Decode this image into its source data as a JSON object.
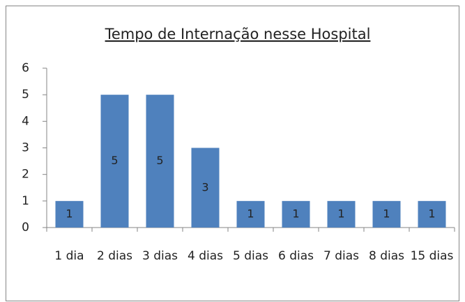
{
  "chart_data": {
    "type": "bar",
    "title": "Tempo de Internação nesse Hospital",
    "categories": [
      "1 dia",
      "2 dias",
      "3 dias",
      "4 dias",
      "5 dias",
      "6 dias",
      "7 dias",
      "8 dias",
      "15 dias"
    ],
    "values": [
      1,
      5,
      5,
      3,
      1,
      1,
      1,
      1,
      1
    ],
    "color": "#4f81bd",
    "ylim": [
      0,
      6
    ],
    "yticks": [
      0,
      1,
      2,
      3,
      4,
      5,
      6
    ],
    "grid": false
  }
}
